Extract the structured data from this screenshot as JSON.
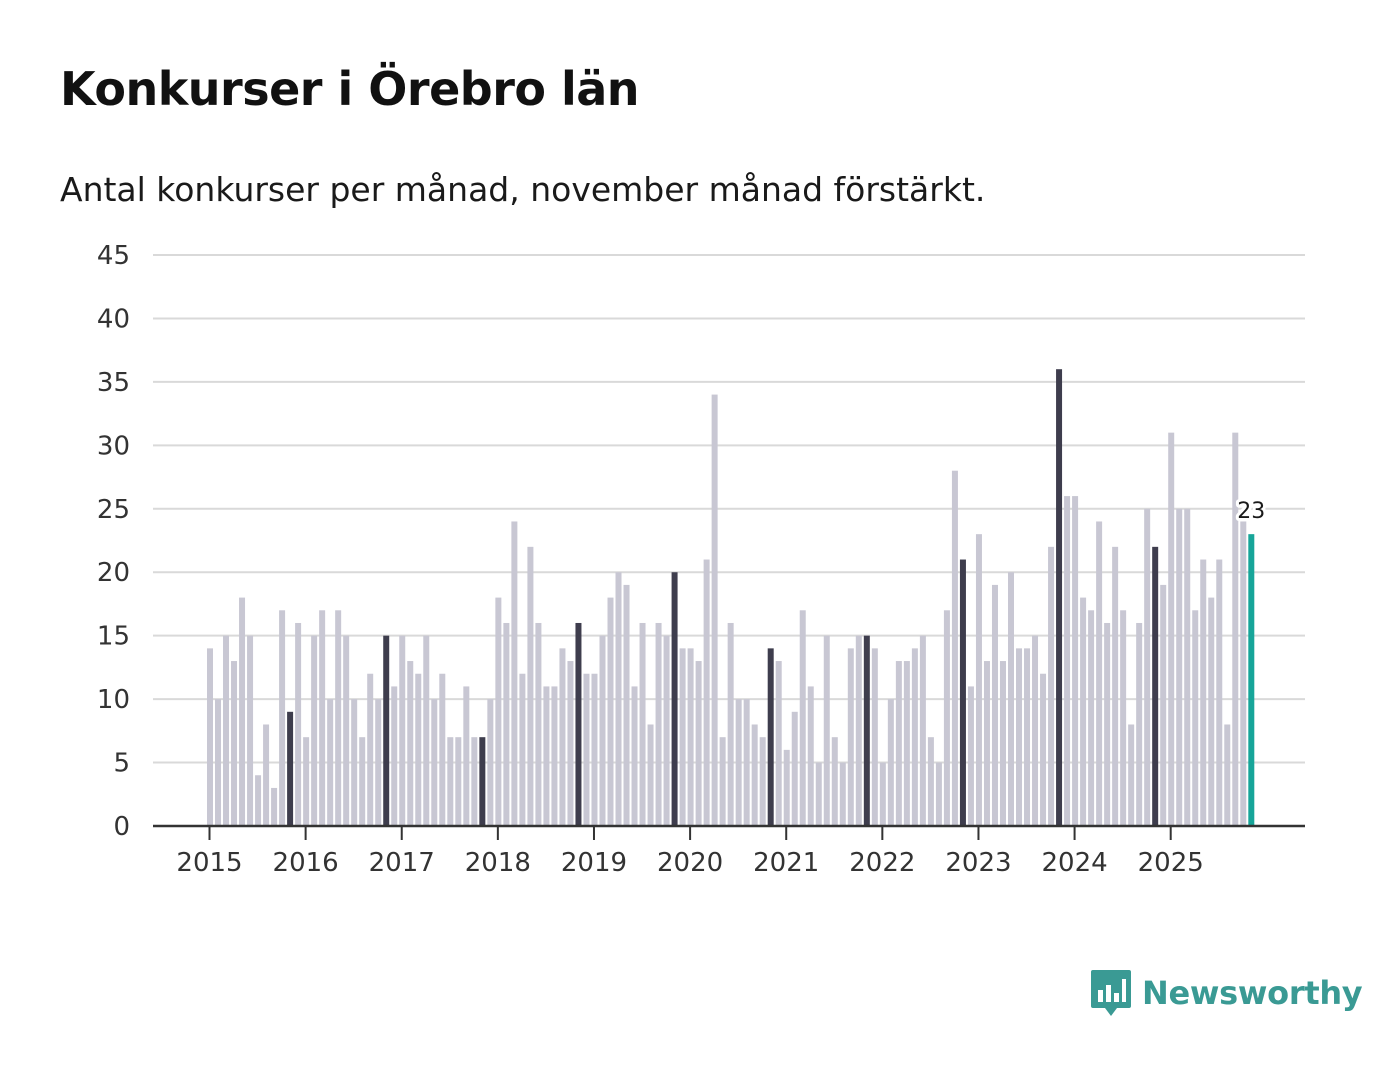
{
  "title": "Konkurser i Örebro län",
  "subtitle": "Antal konkurser per månad, november månad förstärkt.",
  "brand": {
    "name": "Newsworthy",
    "color": "#3a9a94",
    "icon": "newsworthy-logo-icon"
  },
  "colors": {
    "regular": "#c8c7d3",
    "november": "#3e3d4d",
    "latest": "#17a599",
    "grid": "#d9d9d9",
    "axis": "#333333"
  },
  "chart_data": {
    "type": "bar",
    "title": "Konkurser i Örebro län",
    "subtitle": "Antal konkurser per månad, november månad förstärkt.",
    "xlabel": "",
    "ylabel": "",
    "ylim": [
      0,
      45
    ],
    "yticks": [
      "0",
      "5",
      "10",
      "15",
      "20",
      "25",
      "30",
      "35",
      "40",
      "45"
    ],
    "xticks": [
      "2015",
      "2016",
      "2017",
      "2018",
      "2019",
      "2020",
      "2021",
      "2022",
      "2023",
      "2024",
      "2025"
    ],
    "start": "2015-01",
    "end": "2025-11",
    "highlight_month": "november",
    "latest_label": "23",
    "values": [
      14,
      10,
      15,
      13,
      18,
      15,
      4,
      8,
      3,
      17,
      9,
      16,
      7,
      15,
      17,
      10,
      17,
      15,
      10,
      7,
      12,
      10,
      15,
      11,
      15,
      13,
      12,
      15,
      10,
      12,
      7,
      7,
      11,
      7,
      7,
      10,
      18,
      16,
      24,
      12,
      22,
      16,
      11,
      11,
      14,
      13,
      16,
      12,
      12,
      15,
      18,
      20,
      19,
      11,
      16,
      8,
      16,
      15,
      20,
      14,
      14,
      13,
      21,
      34,
      7,
      16,
      10,
      10,
      8,
      7,
      14,
      13,
      6,
      9,
      17,
      11,
      5,
      15,
      7,
      5,
      14,
      15,
      15,
      14,
      5,
      10,
      13,
      13,
      14,
      15,
      7,
      5,
      17,
      28,
      21,
      11,
      23,
      13,
      19,
      13,
      20,
      14,
      14,
      15,
      12,
      22,
      36,
      26,
      26,
      18,
      17,
      24,
      16,
      22,
      17,
      8,
      16,
      25,
      22,
      19,
      31,
      25,
      25,
      17,
      21,
      18,
      21,
      8,
      31,
      24,
      23
    ]
  }
}
